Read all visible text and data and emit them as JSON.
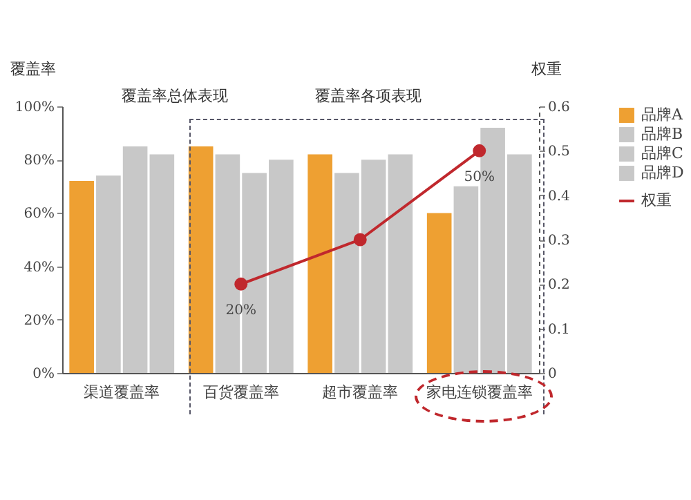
{
  "chart_data": {
    "type": "bar",
    "ylabel": "覆盖率",
    "y2label": "权重",
    "annotations": [
      "覆盖率总体表现",
      "覆盖率各项表现"
    ],
    "categories": [
      "渠道覆盖率",
      "百货覆盖率",
      "超市覆盖率",
      "家电连锁覆盖率"
    ],
    "series": [
      {
        "name": "品牌A",
        "color": "#eea032",
        "values": [
          72,
          85,
          82,
          60
        ]
      },
      {
        "name": "品牌B",
        "color": "#c8c8c8",
        "values": [
          74,
          82,
          75,
          70
        ]
      },
      {
        "name": "品牌C",
        "color": "#c8c8c8",
        "values": [
          85,
          75,
          80,
          92
        ]
      },
      {
        "name": "品牌D",
        "color": "#c8c8c8",
        "values": [
          82,
          80,
          82,
          82
        ]
      },
      {
        "name": "权重",
        "type": "line",
        "axis": "y2",
        "color": "#c0282d",
        "marker": "circle",
        "values": [
          null,
          0.2,
          0.3,
          0.5
        ],
        "value_labels": [
          null,
          "20%",
          null,
          "50%"
        ]
      }
    ],
    "ylim": [
      0,
      100
    ],
    "yticks": [
      {
        "value": 0,
        "label": "0%"
      },
      {
        "value": 20,
        "label": "20%"
      },
      {
        "value": 40,
        "label": "40%"
      },
      {
        "value": 60,
        "label": "60%"
      },
      {
        "value": 80,
        "label": "80%"
      },
      {
        "value": 100,
        "label": "100%"
      }
    ],
    "y2lim": [
      0,
      0.6
    ],
    "y2ticks": [
      0,
      0.1,
      0.2,
      0.3,
      0.4,
      0.5,
      0.6
    ],
    "legend": "right"
  }
}
